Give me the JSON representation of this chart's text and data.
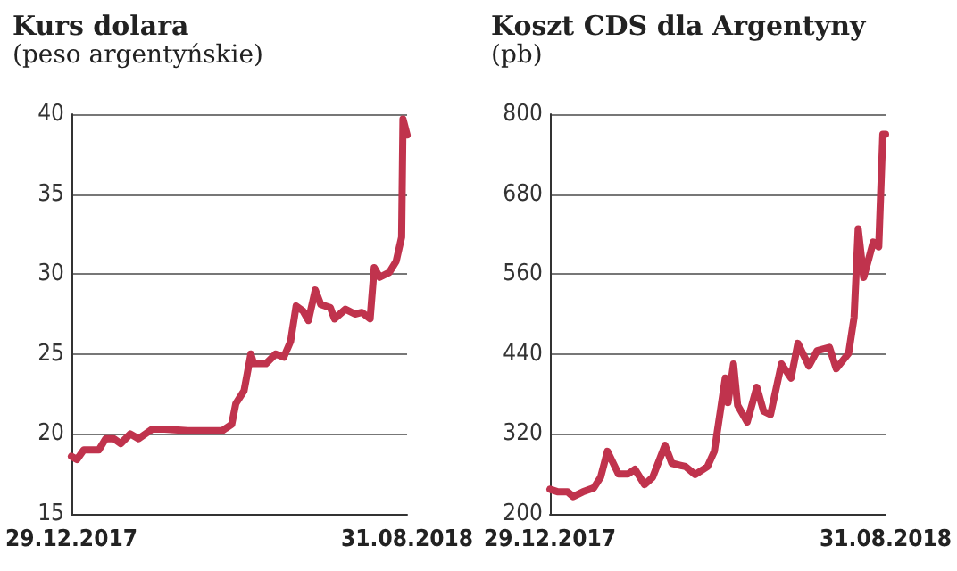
{
  "chart_data": [
    {
      "type": "line",
      "title": "Kurs dolara",
      "subtitle": "(peso argentyńskie)",
      "x": [
        "2017-12-29",
        "2018-01-02",
        "2018-01-07",
        "2018-01-18",
        "2018-01-23",
        "2018-01-29",
        "2018-02-03",
        "2018-02-10",
        "2018-02-16",
        "2018-02-26",
        "2018-03-07",
        "2018-03-24",
        "2018-04-07",
        "2018-04-18",
        "2018-04-25",
        "2018-04-28",
        "2018-05-04",
        "2018-05-09",
        "2018-05-11",
        "2018-05-20",
        "2018-05-27",
        "2018-06-02",
        "2018-06-07",
        "2018-06-11",
        "2018-06-16",
        "2018-06-20",
        "2018-06-25",
        "2018-06-29",
        "2018-07-06",
        "2018-07-09",
        "2018-07-17",
        "2018-07-24",
        "2018-07-29",
        "2018-08-04",
        "2018-08-07",
        "2018-08-11",
        "2018-08-18",
        "2018-08-23",
        "2018-08-27",
        "2018-08-28",
        "2018-08-31"
      ],
      "series": [
        {
          "color": "#c0334d",
          "values": [
            18.6,
            18.4,
            19.0,
            19.0,
            19.7,
            19.7,
            19.4,
            20.0,
            19.7,
            20.3,
            20.3,
            20.2,
            20.2,
            20.2,
            20.6,
            21.9,
            22.7,
            25.0,
            24.4,
            24.4,
            25.0,
            24.8,
            25.8,
            28.0,
            27.7,
            27.1,
            29.0,
            28.1,
            27.9,
            27.2,
            27.8,
            27.5,
            27.6,
            27.2,
            30.4,
            29.8,
            30.1,
            30.8,
            32.3,
            39.7,
            38.7
          ]
        }
      ],
      "xlim": [
        "2017-12-29",
        "2018-08-31"
      ],
      "xticks": [
        {
          "value": "2017-12-29",
          "label": "29.12.2017"
        },
        {
          "value": "2018-08-31",
          "label": "31.08.2018"
        }
      ],
      "ylim": [
        15,
        40
      ],
      "yticks": [
        15,
        20,
        25,
        30,
        35,
        40
      ],
      "grid": "y",
      "marker": "none",
      "line_style": "solid"
    },
    {
      "type": "line",
      "title": "Koszt CDS dla Argentyny",
      "subtitle": "(pb)",
      "x": [
        "2017-12-29",
        "2018-01-04",
        "2018-01-11",
        "2018-01-15",
        "2018-01-22",
        "2018-01-30",
        "2018-02-04",
        "2018-02-09",
        "2018-02-17",
        "2018-02-24",
        "2018-03-01",
        "2018-03-08",
        "2018-03-14",
        "2018-03-23",
        "2018-03-28",
        "2018-04-07",
        "2018-04-14",
        "2018-04-23",
        "2018-04-28",
        "2018-05-02",
        "2018-05-06",
        "2018-05-08",
        "2018-05-12",
        "2018-05-15",
        "2018-05-22",
        "2018-05-29",
        "2018-06-03",
        "2018-06-08",
        "2018-06-16",
        "2018-06-23",
        "2018-06-28",
        "2018-07-06",
        "2018-07-12",
        "2018-07-21",
        "2018-07-26",
        "2018-08-04",
        "2018-08-08",
        "2018-08-11",
        "2018-08-15",
        "2018-08-22",
        "2018-08-26",
        "2018-08-29",
        "2018-08-31"
      ],
      "series": [
        {
          "color": "#c0334d",
          "values": [
            237,
            233,
            233,
            226,
            233,
            239,
            255,
            294,
            260,
            260,
            267,
            244,
            255,
            303,
            276,
            271,
            259,
            271,
            294,
            349,
            404,
            367,
            425,
            363,
            338,
            390,
            354,
            349,
            425,
            404,
            456,
            422,
            445,
            450,
            418,
            441,
            495,
            628,
            555,
            608,
            601,
            770,
            770
          ]
        }
      ],
      "xlim": [
        "2017-12-29",
        "2018-08-31"
      ],
      "xticks": [
        {
          "value": "2017-12-29",
          "label": "29.12.2017"
        },
        {
          "value": "2018-08-31",
          "label": "31.08.2018"
        }
      ],
      "ylim": [
        200,
        800
      ],
      "yticks": [
        200,
        320,
        440,
        560,
        680,
        800
      ],
      "grid": "y",
      "marker": "none",
      "line_style": "solid"
    }
  ]
}
